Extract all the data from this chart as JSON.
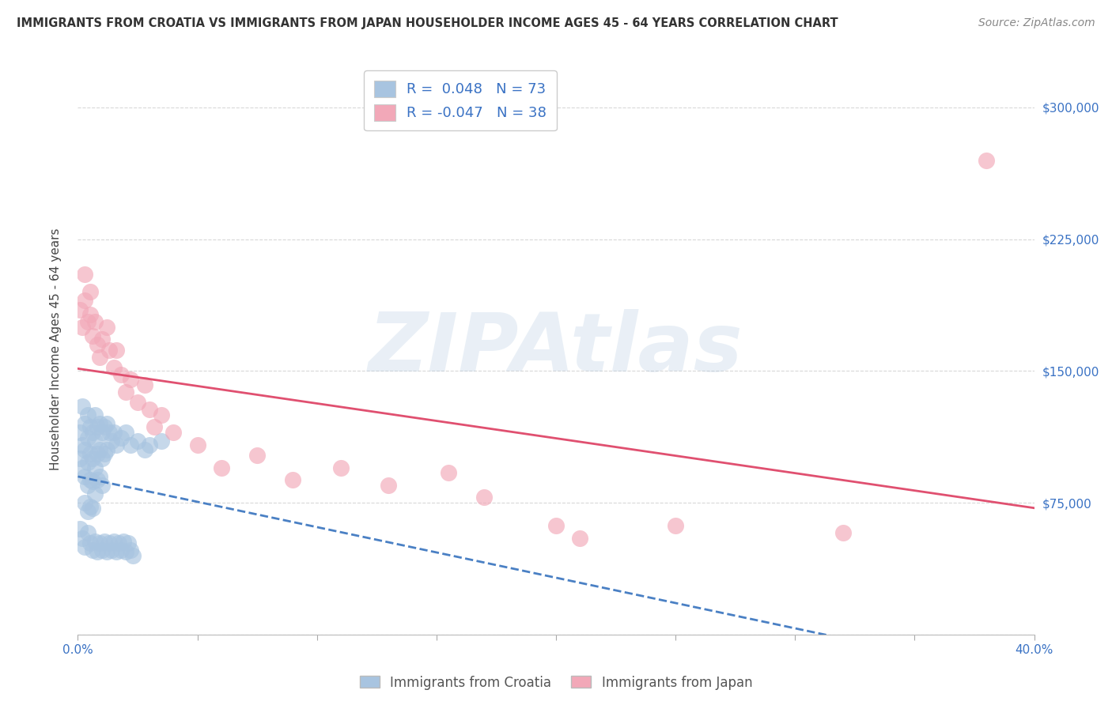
{
  "title": "IMMIGRANTS FROM CROATIA VS IMMIGRANTS FROM JAPAN HOUSEHOLDER INCOME AGES 45 - 64 YEARS CORRELATION CHART",
  "source": "Source: ZipAtlas.com",
  "ylabel": "Householder Income Ages 45 - 64 years",
  "xlim": [
    0.0,
    0.4
  ],
  "ylim": [
    0,
    325000
  ],
  "xtick_labels_edge": [
    "0.0%",
    "40.0%"
  ],
  "ytick_values": [
    0,
    75000,
    150000,
    225000,
    300000
  ],
  "ytick_labels": [
    "",
    "$75,000",
    "$150,000",
    "$225,000",
    "$300,000"
  ],
  "croatia_R": 0.048,
  "croatia_N": 73,
  "japan_R": -0.047,
  "japan_N": 38,
  "croatia_color": "#a8c4e0",
  "japan_color": "#f2a8b8",
  "croatia_trend_color": "#4a80c4",
  "japan_trend_color": "#e05070",
  "watermark": "ZIPAtlas",
  "label_color": "#3a72c4",
  "grid_color": "#d8d8d8",
  "croatia_x": [
    0.001,
    0.001,
    0.002,
    0.002,
    0.002,
    0.003,
    0.003,
    0.003,
    0.003,
    0.004,
    0.004,
    0.004,
    0.004,
    0.004,
    0.005,
    0.005,
    0.005,
    0.005,
    0.006,
    0.006,
    0.006,
    0.006,
    0.007,
    0.007,
    0.007,
    0.007,
    0.008,
    0.008,
    0.008,
    0.009,
    0.009,
    0.009,
    0.01,
    0.01,
    0.01,
    0.011,
    0.011,
    0.012,
    0.012,
    0.013,
    0.014,
    0.015,
    0.016,
    0.018,
    0.02,
    0.022,
    0.025,
    0.028,
    0.03,
    0.035,
    0.001,
    0.002,
    0.003,
    0.004,
    0.005,
    0.006,
    0.007,
    0.008,
    0.009,
    0.01,
    0.011,
    0.012,
    0.013,
    0.014,
    0.015,
    0.016,
    0.017,
    0.018,
    0.019,
    0.02,
    0.021,
    0.022,
    0.023
  ],
  "croatia_y": [
    100000,
    115000,
    130000,
    108000,
    95000,
    120000,
    105000,
    90000,
    75000,
    125000,
    112000,
    98000,
    85000,
    70000,
    118000,
    103000,
    88000,
    73000,
    115000,
    100000,
    87000,
    72000,
    125000,
    110000,
    95000,
    80000,
    118000,
    103000,
    88000,
    120000,
    105000,
    90000,
    115000,
    100000,
    85000,
    118000,
    103000,
    120000,
    105000,
    115000,
    110000,
    115000,
    108000,
    112000,
    115000,
    108000,
    110000,
    105000,
    108000,
    110000,
    60000,
    55000,
    50000,
    58000,
    52000,
    48000,
    53000,
    47000,
    52000,
    48000,
    53000,
    47000,
    52000,
    48000,
    53000,
    47000,
    52000,
    48000,
    53000,
    47000,
    52000,
    48000,
    45000
  ],
  "japan_x": [
    0.001,
    0.002,
    0.003,
    0.003,
    0.004,
    0.005,
    0.005,
    0.006,
    0.007,
    0.008,
    0.009,
    0.01,
    0.012,
    0.013,
    0.015,
    0.016,
    0.018,
    0.02,
    0.022,
    0.025,
    0.028,
    0.03,
    0.032,
    0.035,
    0.04,
    0.05,
    0.06,
    0.075,
    0.09,
    0.11,
    0.13,
    0.155,
    0.17,
    0.2,
    0.21,
    0.25,
    0.32,
    0.38
  ],
  "japan_y": [
    185000,
    175000,
    205000,
    190000,
    178000,
    195000,
    182000,
    170000,
    178000,
    165000,
    158000,
    168000,
    175000,
    162000,
    152000,
    162000,
    148000,
    138000,
    145000,
    132000,
    142000,
    128000,
    118000,
    125000,
    115000,
    108000,
    95000,
    102000,
    88000,
    95000,
    85000,
    92000,
    78000,
    62000,
    55000,
    62000,
    58000,
    270000
  ]
}
